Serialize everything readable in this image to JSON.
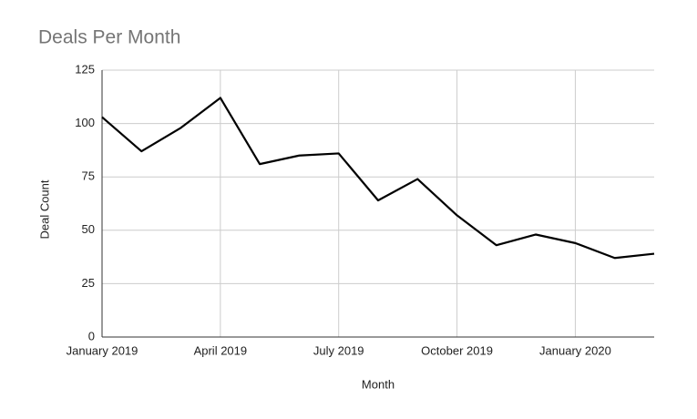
{
  "chart_data": {
    "type": "line",
    "title": "Deals Per Month",
    "x_label": "Month",
    "y_label": "Deal Count",
    "categories": [
      "January 2019",
      null,
      null,
      "April 2019",
      null,
      null,
      "July 2019",
      null,
      null,
      "October 2019",
      null,
      null,
      "January 2020",
      null,
      null
    ],
    "series": [
      {
        "name": "Deal Count",
        "color": "#000000",
        "values": [
          103,
          87,
          98,
          112,
          81,
          85,
          86,
          64,
          74,
          57,
          43,
          48,
          44,
          37,
          39
        ]
      }
    ],
    "ylim": [
      0,
      125
    ],
    "yticks": [
      0,
      25,
      50,
      75,
      100,
      125
    ],
    "grid": true
  }
}
